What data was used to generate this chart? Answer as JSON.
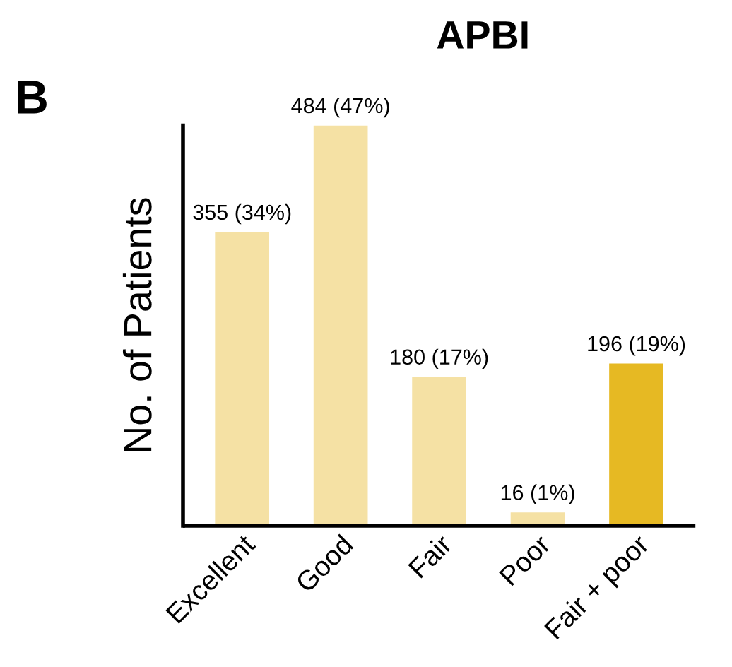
{
  "chart_data": {
    "type": "bar",
    "title": "APBI",
    "ylabel": "No. of Patients",
    "categories": [
      "Excellent",
      "Good",
      "Fair",
      "Poor",
      "Fair + poor"
    ],
    "values": [
      355,
      484,
      180,
      16,
      196
    ],
    "colors": [
      "#f5e1a4",
      "#f5e1a4",
      "#f5e1a4",
      "#f5e1a4",
      "#e6b923"
    ],
    "value_labels": [
      "355 (34%)",
      "484 (47%)",
      "180 (17%)",
      "16 (1%)",
      "196 (19%)"
    ],
    "annotations": [
      "B"
    ],
    "tick_labels": "x",
    "grid": false
  }
}
